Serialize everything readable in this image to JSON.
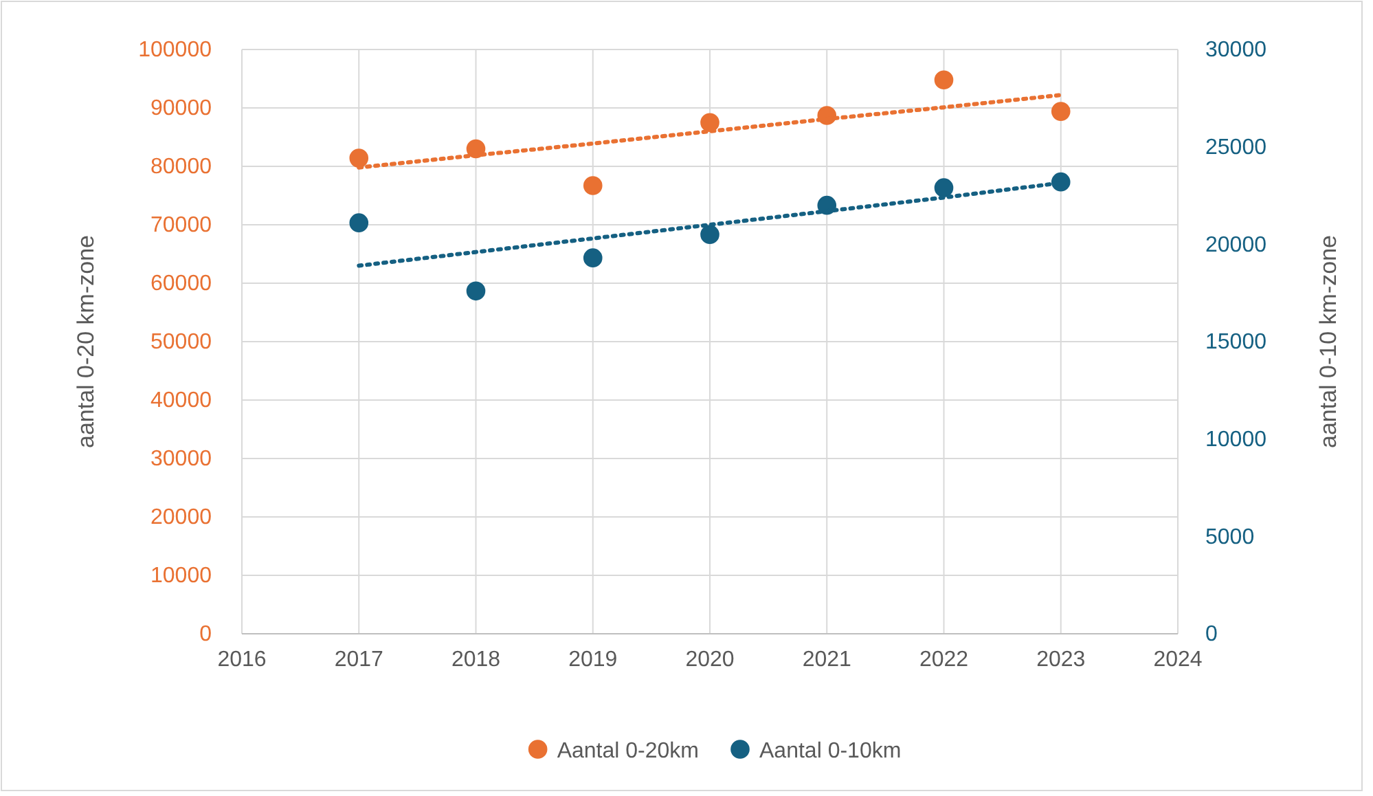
{
  "chart_data": {
    "type": "scatter",
    "ylabel": "aantal 0-20 km-zone",
    "y2label": "aantal 0-10 km-zone",
    "x": [
      2017,
      2018,
      2019,
      2020,
      2021,
      2022,
      2023
    ],
    "xlim": [
      2016,
      2024
    ],
    "xticks": [
      2016,
      2017,
      2018,
      2019,
      2020,
      2021,
      2022,
      2023,
      2024
    ],
    "ylim": [
      0,
      100000
    ],
    "yticks": [
      0,
      10000,
      20000,
      30000,
      40000,
      50000,
      60000,
      70000,
      80000,
      90000,
      100000
    ],
    "y2lim": [
      0,
      30000
    ],
    "y2ticks": [
      0,
      5000,
      10000,
      15000,
      20000,
      25000,
      30000
    ],
    "grid": true,
    "legend": "bottom",
    "marker": "circle",
    "series": [
      {
        "name": "Aantal 0-20km",
        "color": "#e97132",
        "values": [
          81400,
          83000,
          76700,
          87500,
          88700,
          94800,
          89400
        ]
      },
      {
        "name": "Aantal 0-10km",
        "color": "#156082",
        "axis": "y2",
        "values": [
          21100,
          17600,
          19300,
          20500,
          22000,
          22900,
          23200
        ]
      },
      {
        "type": "line",
        "color": "#e97132",
        "marker": "none",
        "line_style": "dotted",
        "values": [
          79800,
          81900,
          83900,
          86000,
          88100,
          90100,
          92200
        ]
      },
      {
        "type": "line",
        "color": "#156082",
        "axis": "y2",
        "marker": "none",
        "line_style": "dotted",
        "values": [
          18900,
          19600,
          20300,
          21000,
          21700,
          22400,
          23150
        ]
      }
    ]
  }
}
